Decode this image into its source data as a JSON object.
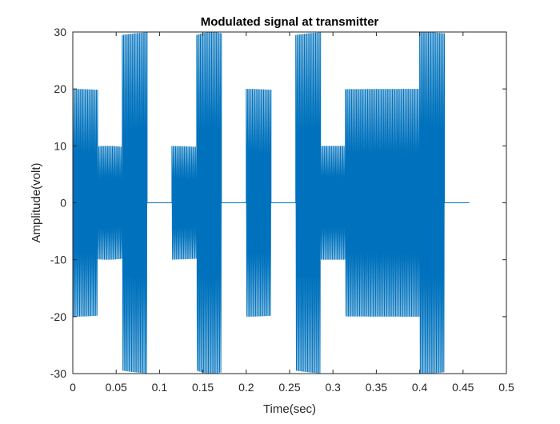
{
  "chart_data": {
    "type": "line",
    "title": "Modulated signal at transmitter",
    "xlabel": "Time(sec)",
    "ylabel": "Amplitude(volt)",
    "xlim": [
      0,
      0.5
    ],
    "ylim": [
      -30,
      30
    ],
    "xticks": [
      "0",
      "0.05",
      "0.1",
      "0.15",
      "0.2",
      "0.25",
      "0.3",
      "0.35",
      "0.4",
      "0.45",
      "0.5"
    ],
    "yticks": [
      "-30",
      "-20",
      "-10",
      "0",
      "10",
      "20",
      "30"
    ],
    "grid": false,
    "line_color": "#0072BD",
    "series": [
      {
        "segments": [
          {
            "t_start": 0.0,
            "t_end": 0.0286,
            "amplitude": 20
          },
          {
            "t_start": 0.0286,
            "t_end": 0.0571,
            "amplitude": 10
          },
          {
            "t_start": 0.0571,
            "t_end": 0.0857,
            "amplitude": 30
          },
          {
            "t_start": 0.0857,
            "t_end": 0.1143,
            "amplitude": 0
          },
          {
            "t_start": 0.1143,
            "t_end": 0.1429,
            "amplitude": 10
          },
          {
            "t_start": 0.1429,
            "t_end": 0.1714,
            "amplitude": 30
          },
          {
            "t_start": 0.1714,
            "t_end": 0.2,
            "amplitude": 0
          },
          {
            "t_start": 0.2,
            "t_end": 0.2286,
            "amplitude": 20
          },
          {
            "t_start": 0.2286,
            "t_end": 0.2571,
            "amplitude": 0
          },
          {
            "t_start": 0.2571,
            "t_end": 0.2857,
            "amplitude": 30
          },
          {
            "t_start": 0.2857,
            "t_end": 0.3143,
            "amplitude": 10
          },
          {
            "t_start": 0.3143,
            "t_end": 0.4,
            "amplitude": 20
          },
          {
            "t_start": 0.4,
            "t_end": 0.4286,
            "amplitude": 30
          },
          {
            "t_start": 0.4286,
            "t_end": 0.4571,
            "amplitude": 0
          }
        ],
        "carrier_frequency_hz": 700
      }
    ]
  }
}
